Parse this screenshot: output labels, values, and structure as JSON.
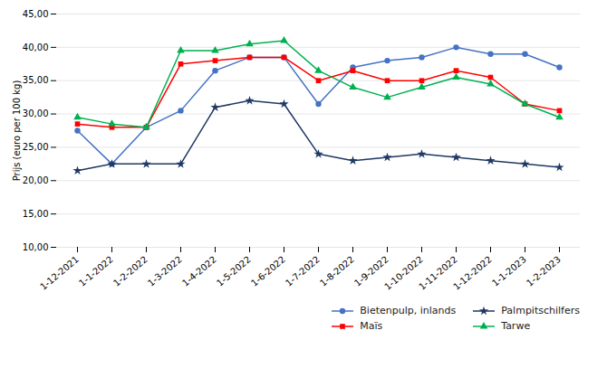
{
  "chart_data": {
    "type": "line",
    "categories": [
      "1-12-2021",
      "1-1-2022",
      "1-2-2022",
      "1-3-2022",
      "1-4-2022",
      "1-5-2022",
      "1-6-2022",
      "1-7-2022",
      "1-8-2022",
      "1-9-2022",
      "1-10-2022",
      "1-11-2022",
      "1-12-2022",
      "1-1-2023",
      "1-2-2023"
    ],
    "series": [
      {
        "name": "Bietenpulp, inlands",
        "color": "#4472C4",
        "marker": "circle",
        "values": [
          27.5,
          22.5,
          28.0,
          30.5,
          36.5,
          38.5,
          38.5,
          31.5,
          37.0,
          38.0,
          38.5,
          40.0,
          39.0,
          39.0,
          37.0
        ]
      },
      {
        "name": "Palmpitschilfers",
        "color": "#1F3864",
        "marker": "star",
        "values": [
          21.5,
          22.5,
          22.5,
          22.5,
          31.0,
          32.0,
          31.5,
          24.0,
          23.0,
          23.5,
          24.0,
          23.5,
          23.0,
          22.5,
          22.0
        ]
      },
      {
        "name": "Maïs",
        "color": "#FF0000",
        "marker": "square",
        "values": [
          28.5,
          28.0,
          28.0,
          37.5,
          38.0,
          38.5,
          38.5,
          35.0,
          36.5,
          35.0,
          35.0,
          36.5,
          35.5,
          31.5,
          30.5
        ]
      },
      {
        "name": "Tarwe",
        "color": "#00B050",
        "marker": "triangle",
        "values": [
          29.5,
          28.5,
          28.0,
          39.5,
          39.5,
          40.5,
          41.0,
          36.5,
          34.0,
          32.5,
          34.0,
          35.5,
          34.5,
          31.5,
          29.5
        ]
      }
    ],
    "ylabel": "Prijs (euro per 100 kg)",
    "ylim": [
      10.0,
      45.0
    ],
    "yticks": [
      {
        "value": 10.0,
        "label": "10,00"
      },
      {
        "value": 15.0,
        "label": "15,00"
      },
      {
        "value": 20.0,
        "label": "20,00"
      },
      {
        "value": 25.0,
        "label": "25,00"
      },
      {
        "value": 30.0,
        "label": "30,00"
      },
      {
        "value": 35.0,
        "label": "35,00"
      },
      {
        "value": 40.0,
        "label": "40,00"
      },
      {
        "value": 45.0,
        "label": "45,00"
      }
    ],
    "grid": "y",
    "legend": "lower right"
  }
}
